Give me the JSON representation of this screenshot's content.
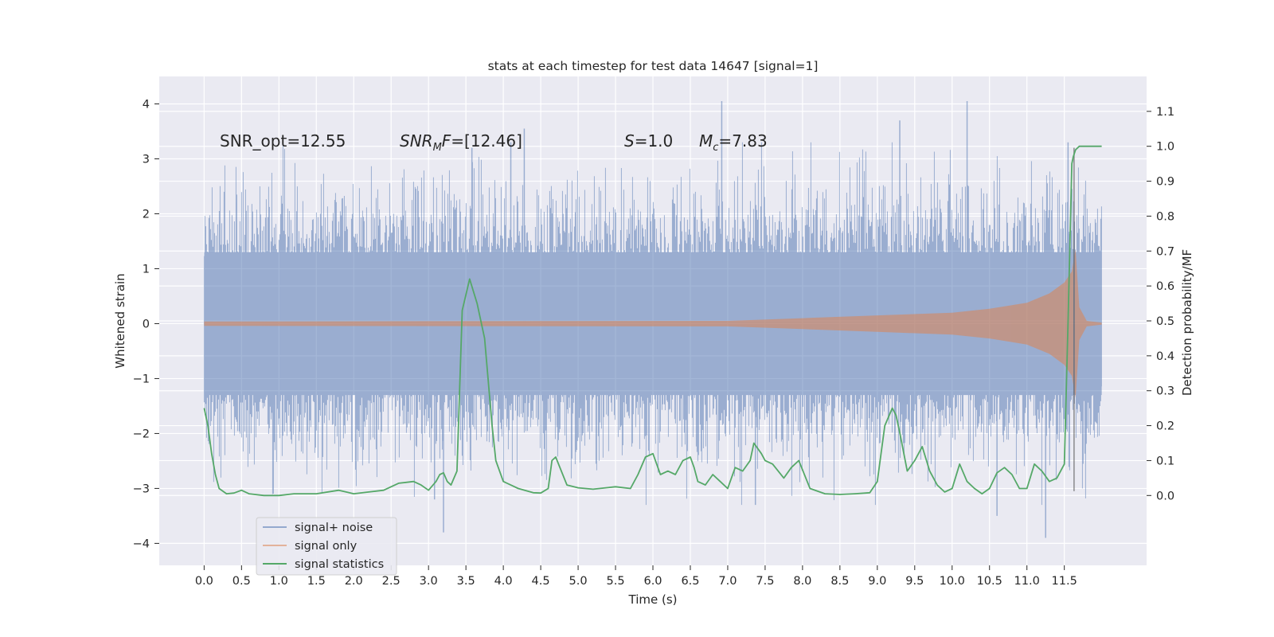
{
  "chart_data": {
    "type": "line",
    "title": "stats at each timestep for test data 14647 [signal=1]",
    "xlabel": "Time (s)",
    "ylabel_left": "Whitened strain",
    "ylabel_right": "Detection probability/MF",
    "xlim": [
      -0.6,
      12.6
    ],
    "ylim_left": [
      -4.4,
      4.5
    ],
    "ylim_right": [
      -0.2,
      1.2
    ],
    "grid": true,
    "legend_location": "lower-left",
    "x_ticks": [
      0.0,
      0.5,
      1.0,
      1.5,
      2.0,
      2.5,
      3.0,
      3.5,
      4.0,
      4.5,
      5.0,
      5.5,
      6.0,
      6.5,
      7.0,
      7.5,
      8.0,
      8.5,
      9.0,
      9.5,
      10.0,
      10.5,
      11.0,
      11.5
    ],
    "x_tick_labels": [
      "0.0",
      "0.5",
      "1.0",
      "1.5",
      "2.0",
      "2.5",
      "3.0",
      "3.5",
      "4.0",
      "4.5",
      "5.0",
      "5.5",
      "6.0",
      "6.5",
      "7.0",
      "7.5",
      "8.0",
      "8.5",
      "9.0",
      "9.5",
      "10.0",
      "10.5",
      "11.0",
      "11.5"
    ],
    "y_left_ticks": [
      -4,
      -3,
      -2,
      -1,
      0,
      1,
      2,
      3,
      4
    ],
    "y_left_tick_labels": [
      "−4",
      "−3",
      "−2",
      "−1",
      "0",
      "1",
      "2",
      "3",
      "4"
    ],
    "y_right_ticks": [
      0.0,
      0.1,
      0.2,
      0.3,
      0.4,
      0.5,
      0.6,
      0.7,
      0.8,
      0.9,
      1.0,
      1.1
    ],
    "y_right_tick_labels": [
      "0.0",
      "0.1",
      "0.2",
      "0.3",
      "0.4",
      "0.5",
      "0.6",
      "0.7",
      "0.8",
      "0.9",
      "1.0",
      "1.1"
    ],
    "annotations": {
      "snr_opt": "SNR_opt=12.55",
      "snr_mf_sym": "SNR",
      "snr_mf_sub": "M",
      "snr_mf_val": "F=[12.46]",
      "s_sym": "S",
      "s_val": "=1.0",
      "mc_sym": "M",
      "mc_sub": "c",
      "mc_val": "=7.83"
    },
    "series": [
      {
        "name": "signal+ noise",
        "color": "#4c72b0",
        "axis": "left",
        "style": "noise band",
        "t_range": [
          0.0,
          12.0
        ],
        "typical_range": [
          -1.3,
          1.3
        ],
        "peak_points": [
          {
            "t": 3.08,
            "y": -3.2
          },
          {
            "t": 3.2,
            "y": -3.8
          },
          {
            "t": 3.58,
            "y": 3.2
          },
          {
            "t": 4.1,
            "y": 3.3
          },
          {
            "t": 4.28,
            "y": 3.55
          },
          {
            "t": 6.92,
            "y": 4.05
          },
          {
            "t": 7.37,
            "y": -3.3
          },
          {
            "t": 9.3,
            "y": 3.7
          },
          {
            "t": 10.2,
            "y": 4.05
          },
          {
            "t": 10.6,
            "y": -3.5
          },
          {
            "t": 11.25,
            "y": -3.9
          },
          {
            "t": 11.55,
            "y": 3.3
          }
        ]
      },
      {
        "name": "signal only",
        "color": "#dd8452",
        "axis": "left",
        "style": "chirp envelope",
        "envelope": [
          {
            "t": 0.0,
            "amp": 0.04
          },
          {
            "t": 7.0,
            "amp": 0.05
          },
          {
            "t": 8.0,
            "amp": 0.1
          },
          {
            "t": 9.0,
            "amp": 0.15
          },
          {
            "t": 10.0,
            "amp": 0.2
          },
          {
            "t": 10.5,
            "amp": 0.27
          },
          {
            "t": 11.0,
            "amp": 0.38
          },
          {
            "t": 11.3,
            "amp": 0.55
          },
          {
            "t": 11.5,
            "amp": 0.75
          },
          {
            "t": 11.6,
            "amp": 0.95
          },
          {
            "t": 11.65,
            "amp": 1.35
          },
          {
            "t": 11.7,
            "amp": 0.3
          },
          {
            "t": 11.8,
            "amp": 0.05
          },
          {
            "t": 12.0,
            "amp": 0.02
          }
        ]
      },
      {
        "name": "signal statistics",
        "color": "#55a868",
        "axis": "right",
        "style": "line",
        "x": [
          0.0,
          0.05,
          0.1,
          0.15,
          0.2,
          0.3,
          0.4,
          0.5,
          0.6,
          0.8,
          1.0,
          1.2,
          1.5,
          1.8,
          1.9,
          2.0,
          2.2,
          2.4,
          2.6,
          2.8,
          2.9,
          3.0,
          3.1,
          3.15,
          3.2,
          3.25,
          3.3,
          3.38,
          3.45,
          3.55,
          3.65,
          3.75,
          3.85,
          3.9,
          4.0,
          4.2,
          4.4,
          4.5,
          4.6,
          4.65,
          4.7,
          4.85,
          5.0,
          5.2,
          5.5,
          5.7,
          5.8,
          5.9,
          6.0,
          6.1,
          6.2,
          6.3,
          6.4,
          6.5,
          6.55,
          6.6,
          6.7,
          6.8,
          6.9,
          7.0,
          7.1,
          7.2,
          7.3,
          7.35,
          7.45,
          7.5,
          7.6,
          7.75,
          7.85,
          7.95,
          8.1,
          8.3,
          8.5,
          8.7,
          8.9,
          9.0,
          9.1,
          9.2,
          9.25,
          9.3,
          9.4,
          9.5,
          9.6,
          9.7,
          9.8,
          9.9,
          10.0,
          10.1,
          10.2,
          10.3,
          10.4,
          10.5,
          10.6,
          10.7,
          10.8,
          10.9,
          11.0,
          11.1,
          11.2,
          11.3,
          11.4,
          11.5,
          11.55,
          11.6,
          11.62,
          11.65,
          11.7,
          11.75,
          11.8,
          11.9,
          12.0
        ],
        "y": [
          0.25,
          0.2,
          0.12,
          0.06,
          0.02,
          0.005,
          0.007,
          0.015,
          0.005,
          0.0,
          0.0,
          0.005,
          0.005,
          0.015,
          0.01,
          0.005,
          0.01,
          0.015,
          0.035,
          0.04,
          0.03,
          0.015,
          0.04,
          0.06,
          0.065,
          0.04,
          0.03,
          0.07,
          0.53,
          0.62,
          0.55,
          0.45,
          0.2,
          0.1,
          0.04,
          0.02,
          0.008,
          0.007,
          0.02,
          0.1,
          0.11,
          0.03,
          0.022,
          0.018,
          0.025,
          0.02,
          0.06,
          0.11,
          0.12,
          0.06,
          0.07,
          0.06,
          0.1,
          0.11,
          0.08,
          0.04,
          0.03,
          0.06,
          0.04,
          0.02,
          0.08,
          0.07,
          0.1,
          0.15,
          0.12,
          0.1,
          0.09,
          0.05,
          0.08,
          0.1,
          0.02,
          0.005,
          0.003,
          0.005,
          0.008,
          0.04,
          0.2,
          0.25,
          0.23,
          0.18,
          0.07,
          0.1,
          0.14,
          0.07,
          0.03,
          0.01,
          0.02,
          0.09,
          0.04,
          0.02,
          0.005,
          0.02,
          0.065,
          0.08,
          0.06,
          0.02,
          0.02,
          0.09,
          0.07,
          0.04,
          0.05,
          0.09,
          0.5,
          0.95,
          0.97,
          0.99,
          1.0,
          1.0,
          1.0,
          1.0,
          1.0
        ]
      }
    ]
  },
  "legend": [
    {
      "label": "signal+ noise",
      "color": "#4c72b0"
    },
    {
      "label": "signal only",
      "color": "#dd8452"
    },
    {
      "label": "signal statistics",
      "color": "#55a868"
    }
  ]
}
